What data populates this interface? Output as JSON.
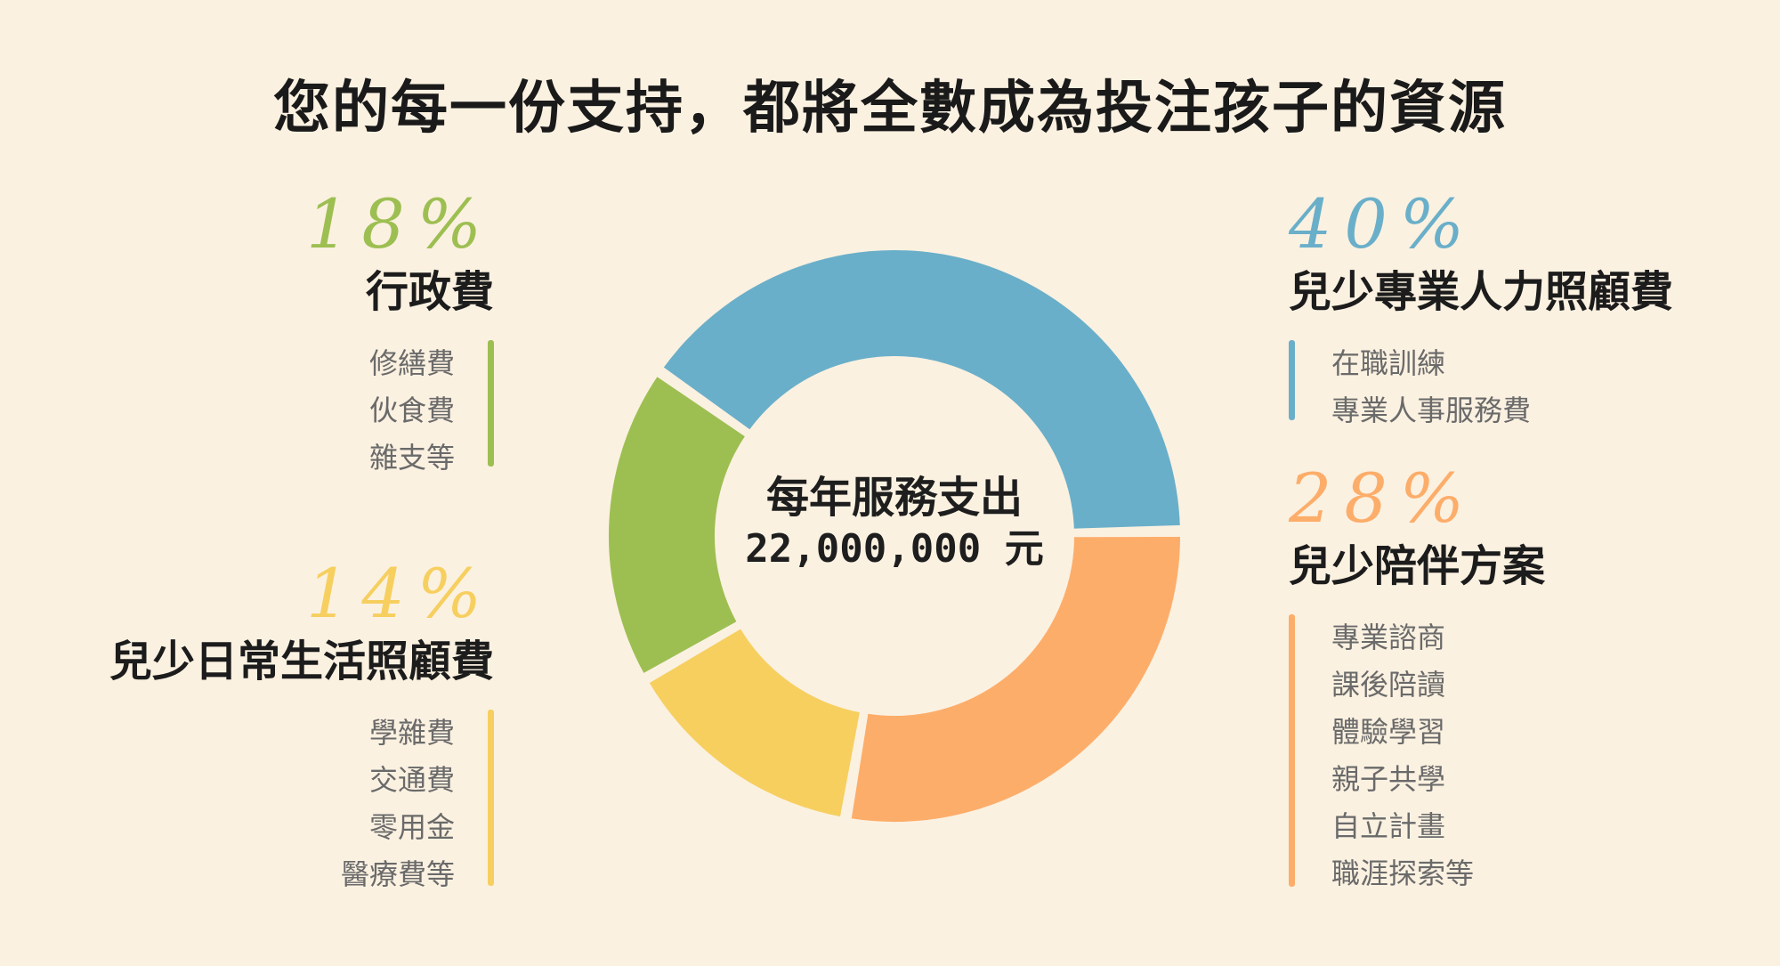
{
  "title": "您的每一份支持，都將全數成為投注孩子的資源",
  "center": {
    "line1": "每年服務支出",
    "line2": "22,000,000 元"
  },
  "colors": {
    "background": "#fbf1e1",
    "blue": "#6aafc9",
    "orange": "#fdad6a",
    "yellow": "#f6cf5f",
    "green": "#9dbf52"
  },
  "categories": [
    {
      "id": "admin",
      "percent_label": "18%",
      "name": "行政費",
      "items": [
        "修繕費",
        "伙食費",
        "雜支等"
      ],
      "color": "#9dbf52"
    },
    {
      "id": "daily",
      "percent_label": "14%",
      "name": "兒少日常生活照顧費",
      "items": [
        "學雜費",
        "交通費",
        "零用金",
        "醫療費等"
      ],
      "color": "#f6cf5f"
    },
    {
      "id": "care",
      "percent_label": "40%",
      "name": "兒少專業人力照顧費",
      "items": [
        "在職訓練",
        "專業人事服務費"
      ],
      "color": "#6aafc9"
    },
    {
      "id": "companion",
      "percent_label": "28%",
      "name": "兒少陪伴方案",
      "items": [
        "專業諮商",
        "課後陪讀",
        "體驗學習",
        "親子共學",
        "自立計畫",
        "職涯探索等"
      ],
      "color": "#fdad6a"
    }
  ],
  "chart_data": {
    "type": "pie",
    "subtype": "donut",
    "unit": "%",
    "center_text": [
      "每年服務支出",
      "22,000,000 元"
    ],
    "slices": [
      {
        "label": "兒少專業人力照顧費",
        "value": 40,
        "color": "#6aafc9"
      },
      {
        "label": "兒少陪伴方案",
        "value": 28,
        "color": "#fdad6a"
      },
      {
        "label": "兒少日常生活照顧費",
        "value": 14,
        "color": "#f6cf5f"
      },
      {
        "label": "行政費",
        "value": 18,
        "color": "#9dbf52"
      }
    ]
  }
}
